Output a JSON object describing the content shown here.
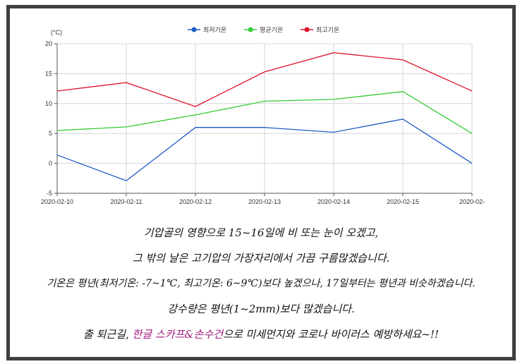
{
  "chart_data": {
    "type": "line",
    "unit_label": "(°C)",
    "x": [
      "2020-02-10",
      "2020-02-11",
      "2020-02-12",
      "2020-02-13",
      "2020-02-14",
      "2020-02-15",
      "2020-02-"
    ],
    "ylim": [
      -5,
      20
    ],
    "yticks": [
      "20",
      "15",
      "10",
      "5",
      "0",
      "-5"
    ],
    "grid": true,
    "legend_position": "top-center",
    "series": [
      {
        "name": "최저기온",
        "color": "#1f5bc4",
        "values": [
          1.4,
          -2.9,
          6.0,
          6.0,
          5.2,
          7.4,
          0.0
        ]
      },
      {
        "name": "평균기온",
        "color": "#33cc33",
        "values": [
          5.5,
          6.1,
          8.1,
          10.4,
          10.7,
          12.0,
          5.0
        ]
      },
      {
        "name": "최고기온",
        "color": "#e0142b",
        "values": [
          12.1,
          13.5,
          9.5,
          15.3,
          18.5,
          17.3,
          12.1
        ]
      }
    ]
  },
  "caption": {
    "line1": "기압골의 영향으로 15~16일에 비 또는 눈이 오겠고,",
    "line2": "그 밖의 날은 고기압의 가장자리에서 가끔 구름많겠습니다.",
    "line3": "기온은 평년(최저기온: -7~1℃, 최고기온: 6~9℃)보다 높겠으나, 17일부터는 평년과 비슷하겠습니다.",
    "line4": "강수량은 평년(1~2mm)보다 많겠습니다.",
    "line5_a": "출 퇴근길, ",
    "line5_hl": "한글 스카프&손수건",
    "line5_b": "으로 미세먼지와 코로나 바이러스 예방하세요~!!"
  }
}
